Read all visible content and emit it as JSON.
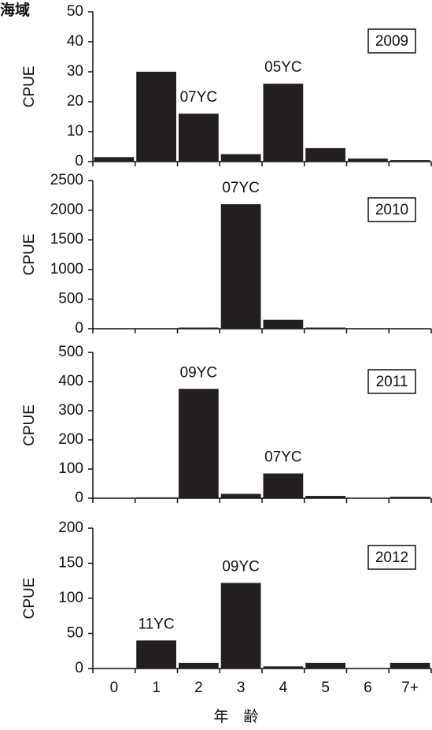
{
  "corner_label": "海域",
  "x_axis": {
    "categories": [
      "0",
      "1",
      "2",
      "3",
      "4",
      "5",
      "6",
      "7+"
    ],
    "label": "年　齢"
  },
  "chart_data": [
    {
      "type": "bar",
      "ylabel": "CPUE",
      "year": "2009",
      "color": "#231f20",
      "values": [
        1.5,
        30,
        16,
        2.5,
        26,
        4.5,
        1,
        0.5
      ],
      "ylim": [
        0,
        50
      ],
      "yticks": [
        0,
        10,
        20,
        30,
        40,
        50
      ],
      "annotations": [
        {
          "text": "07YC",
          "category": "2"
        },
        {
          "text": "05YC",
          "category": "4"
        }
      ]
    },
    {
      "type": "bar",
      "ylabel": "CPUE",
      "year": "2010",
      "color": "#231f20",
      "values": [
        0,
        0,
        20,
        2100,
        150,
        20,
        0,
        0
      ],
      "ylim": [
        0,
        2500
      ],
      "yticks": [
        0,
        500,
        1000,
        1500,
        2000,
        2500
      ],
      "annotations": [
        {
          "text": "07YC",
          "category": "3"
        }
      ]
    },
    {
      "type": "bar",
      "ylabel": "CPUE",
      "year": "2011",
      "color": "#231f20",
      "values": [
        0,
        3,
        375,
        15,
        85,
        8,
        0,
        5
      ],
      "ylim": [
        0,
        500
      ],
      "yticks": [
        0,
        100,
        200,
        300,
        400,
        500
      ],
      "annotations": [
        {
          "text": "09YC",
          "category": "2"
        },
        {
          "text": "07YC",
          "category": "4"
        }
      ]
    },
    {
      "type": "bar",
      "ylabel": "CPUE",
      "year": "2012",
      "color": "#231f20",
      "values": [
        0,
        40,
        8,
        122,
        3,
        8,
        0,
        8
      ],
      "ylim": [
        0,
        200
      ],
      "yticks": [
        0,
        50,
        100,
        150,
        200
      ],
      "annotations": [
        {
          "text": "11YC",
          "category": "1"
        },
        {
          "text": "09YC",
          "category": "3"
        }
      ]
    }
  ]
}
